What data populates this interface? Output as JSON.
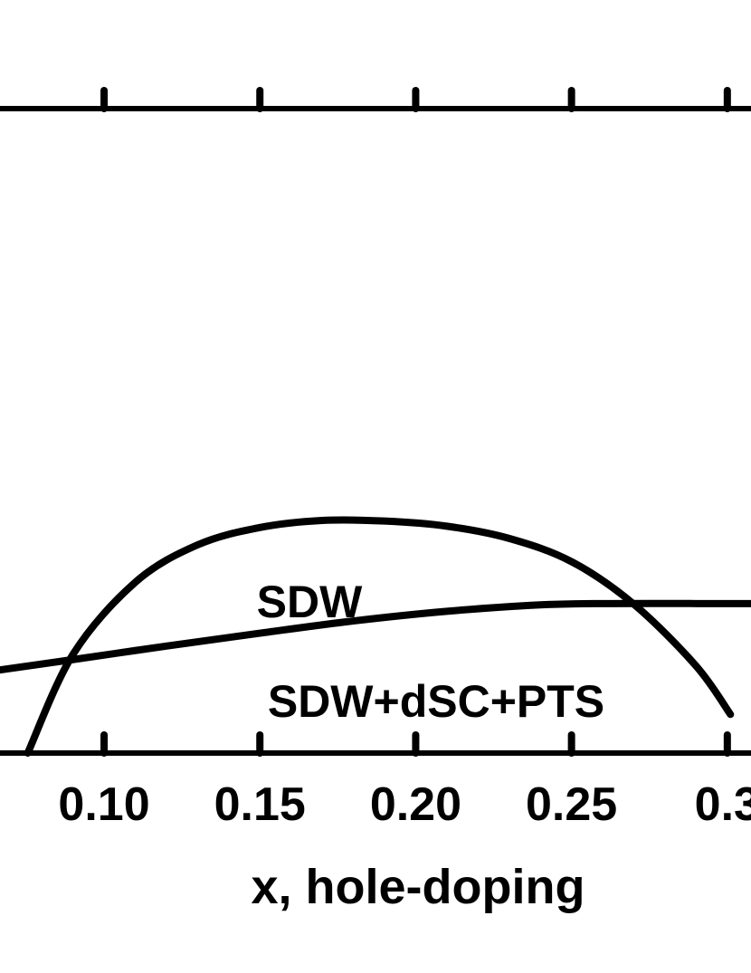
{
  "chart_data": {
    "type": "line",
    "title": "",
    "xlabel": "x, hole-doping",
    "ylabel": "",
    "xlim": [
      0.0666,
      0.3076
    ],
    "ylim": [
      0,
      1
    ],
    "x_ticks": [
      0.1,
      0.15,
      0.2,
      0.25,
      0.3
    ],
    "x_tick_labels": [
      "0.10",
      "0.15",
      "0.20",
      "0.25",
      "0.3"
    ],
    "grid": false,
    "legend": "none",
    "series": [
      {
        "x": [
          0.0755,
          0.09,
          0.11,
          0.13,
          0.15,
          0.17,
          0.19,
          0.21,
          0.23,
          0.25,
          0.27,
          0.29,
          0.301
        ],
        "values": [
          0.0,
          0.153,
          0.265,
          0.323,
          0.35,
          0.361,
          0.36,
          0.352,
          0.333,
          0.297,
          0.231,
          0.135,
          0.06
        ]
      },
      {
        "x": [
          0.0666,
          0.09,
          0.12,
          0.15,
          0.18,
          0.21,
          0.24,
          0.262,
          0.29,
          0.3076
        ],
        "values": [
          0.129,
          0.145,
          0.166,
          0.186,
          0.205,
          0.22,
          0.23,
          0.232,
          0.232,
          0.232
        ]
      }
    ],
    "region_labels": [
      "SDW",
      "SDW+dSC+PTS"
    ]
  }
}
